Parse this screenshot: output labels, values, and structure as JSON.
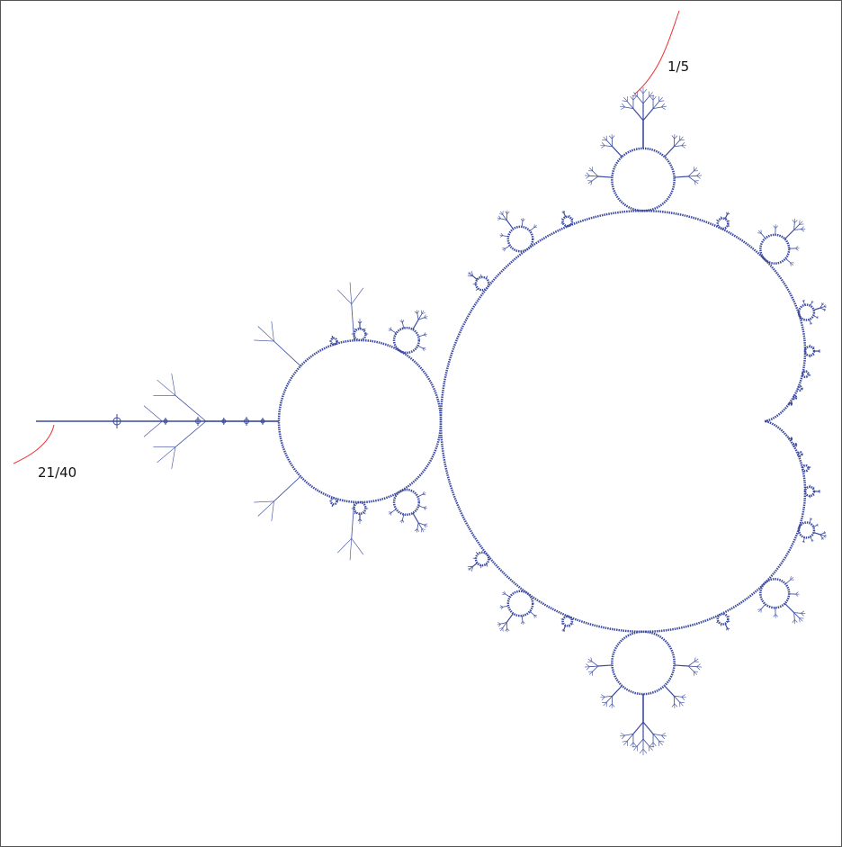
{
  "rays": [
    {
      "label": "1/5"
    },
    {
      "label": "21/40"
    }
  ]
}
